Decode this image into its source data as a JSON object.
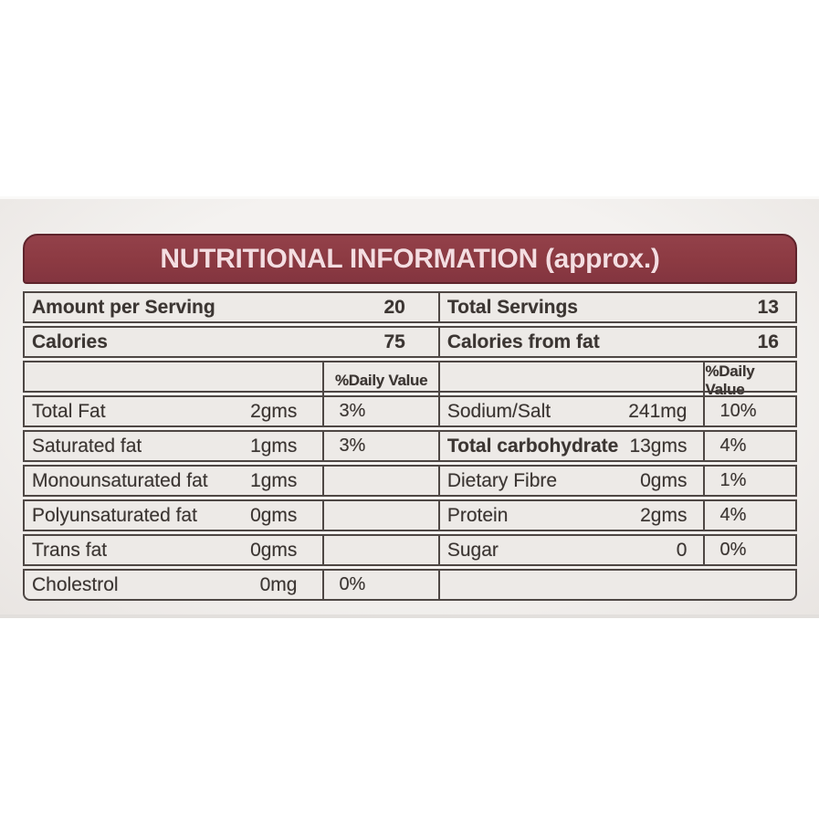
{
  "label": {
    "title": "NUTRITIONAL INFORMATION (approx.)",
    "colors": {
      "header_bg": "#8c3a42",
      "header_text": "#f4dde1",
      "border": "#4e4744",
      "text": "#3b3532",
      "panel_bg": "#efecea"
    },
    "daily_value_header": "%Daily Value",
    "summary_rows": [
      {
        "left": {
          "label": "Amount per Serving",
          "value": "20"
        },
        "right": {
          "label": "Total Servings",
          "value": "13"
        }
      },
      {
        "left": {
          "label": "Calories",
          "value": "75"
        },
        "right": {
          "label": "Calories from fat",
          "value": "16"
        }
      }
    ],
    "nutrient_rows": [
      {
        "left": {
          "label": "Total Fat",
          "amount": "2gms",
          "dv": "3%"
        },
        "right": {
          "label": "Sodium/Salt",
          "amount": "241mg",
          "dv": "10%"
        }
      },
      {
        "left": {
          "label": "Saturated fat",
          "amount": "1gms",
          "dv": "3%"
        },
        "right": {
          "label": "Total carbohydrate",
          "amount": "13gms",
          "dv": "4%"
        }
      },
      {
        "left": {
          "label": "Monounsaturated fat",
          "amount": "1gms",
          "dv": ""
        },
        "right": {
          "label": "Dietary Fibre",
          "amount": "0gms",
          "dv": "1%"
        }
      },
      {
        "left": {
          "label": "Polyunsaturated fat",
          "amount": "0gms",
          "dv": ""
        },
        "right": {
          "label": "Protein",
          "amount": "2gms",
          "dv": "4%"
        }
      },
      {
        "left": {
          "label": "Trans fat",
          "amount": "0gms",
          "dv": ""
        },
        "right": {
          "label": "Sugar",
          "amount": "0",
          "dv": "0%"
        }
      }
    ],
    "last_row": {
      "left": {
        "label": "Cholestrol",
        "amount": "0mg",
        "dv": "0%"
      }
    }
  }
}
